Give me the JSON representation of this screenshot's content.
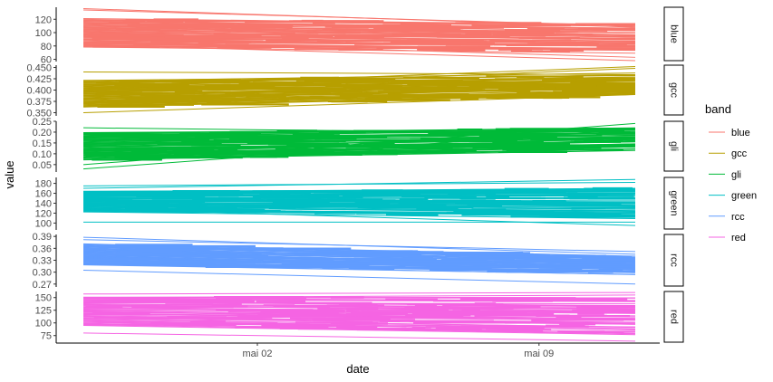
{
  "chart_data": {
    "type": "line",
    "xlabel": "date",
    "ylabel": "value",
    "x_ticks": [
      "mai 02",
      "mai 09"
    ],
    "x_tick_dates": [
      "2019-05-02",
      "2019-05-09"
    ],
    "x_range": [
      "2019-04-27",
      "2019-05-12"
    ],
    "legend": {
      "title": "band",
      "position": "right",
      "entries": [
        "blue",
        "gcc",
        "gli",
        "green",
        "rcc",
        "red"
      ]
    },
    "facets": [
      {
        "band": "blue",
        "color": "#F8766D",
        "ylim": [
          58,
          138
        ],
        "ticks": [
          60,
          80,
          100,
          120
        ],
        "tick_labels": [
          "60",
          "80",
          "100",
          "120"
        ],
        "band_lower_start": 78,
        "band_lower_end": 70,
        "band_upper_start": 122,
        "band_upper_end": 112,
        "outliers": [
          [
            136,
            108
          ],
          [
            134,
            110
          ],
          [
            82,
            58
          ],
          [
            88,
            63
          ]
        ]
      },
      {
        "band": "gcc",
        "color": "#B79F00",
        "ylim": [
          0.345,
          0.455
        ],
        "ticks": [
          0.35,
          0.375,
          0.4,
          0.425,
          0.45
        ],
        "tick_labels": [
          "0.350",
          "0.375",
          "0.400",
          "0.425",
          "0.450"
        ],
        "band_lower_start": 0.362,
        "band_lower_end": 0.387,
        "band_upper_start": 0.422,
        "band_upper_end": 0.436,
        "outliers": [
          [
            0.44,
            0.434
          ],
          [
            0.35,
            0.39
          ],
          [
            0.405,
            0.452
          ],
          [
            0.398,
            0.448
          ]
        ]
      },
      {
        "band": "gli",
        "color": "#00BA38",
        "ylim": [
          0.02,
          0.25
        ],
        "ticks": [
          0.05,
          0.1,
          0.15,
          0.2,
          0.25
        ],
        "tick_labels": [
          "0.05",
          "0.10",
          "0.15",
          "0.20",
          "0.25"
        ],
        "band_lower_start": 0.07,
        "band_lower_end": 0.12,
        "band_upper_start": 0.2,
        "band_upper_end": 0.22,
        "outliers": [
          [
            0.03,
            0.215
          ],
          [
            0.05,
            0.24
          ],
          [
            0.22,
            0.192
          ]
        ]
      },
      {
        "band": "green",
        "color": "#00BFC4",
        "ylim": [
          88,
          192
        ],
        "ticks": [
          100,
          120,
          140,
          160,
          180
        ],
        "tick_labels": [
          "100",
          "120",
          "140",
          "160",
          "180"
        ],
        "band_lower_start": 122,
        "band_lower_end": 110,
        "band_upper_start": 165,
        "band_upper_end": 172,
        "outliers": [
          [
            102,
            102
          ],
          [
            170,
            188
          ],
          [
            130,
            95
          ],
          [
            175,
            182
          ]
        ]
      },
      {
        "band": "rcc",
        "color": "#619CFF",
        "ylim": [
          0.265,
          0.395
        ],
        "ticks": [
          0.27,
          0.3,
          0.33,
          0.36,
          0.39
        ],
        "tick_labels": [
          "0.27",
          "0.30",
          "0.33",
          "0.36",
          "0.39"
        ],
        "band_lower_start": 0.318,
        "band_lower_end": 0.295,
        "band_upper_start": 0.372,
        "band_upper_end": 0.338,
        "outliers": [
          [
            0.388,
            0.345
          ],
          [
            0.305,
            0.27
          ],
          [
            0.382,
            0.352
          ]
        ]
      },
      {
        "band": "red",
        "color": "#F564E3",
        "ylim": [
          62,
          162
        ],
        "ticks": [
          75,
          100,
          125,
          150
        ],
        "tick_labels": [
          "75",
          "100",
          "125",
          "150"
        ],
        "band_lower_start": 95,
        "band_lower_end": 78,
        "band_upper_start": 152,
        "band_upper_end": 148,
        "outliers": [
          [
            80,
            64
          ],
          [
            157,
            160
          ],
          [
            150,
            155
          ]
        ]
      }
    ]
  }
}
